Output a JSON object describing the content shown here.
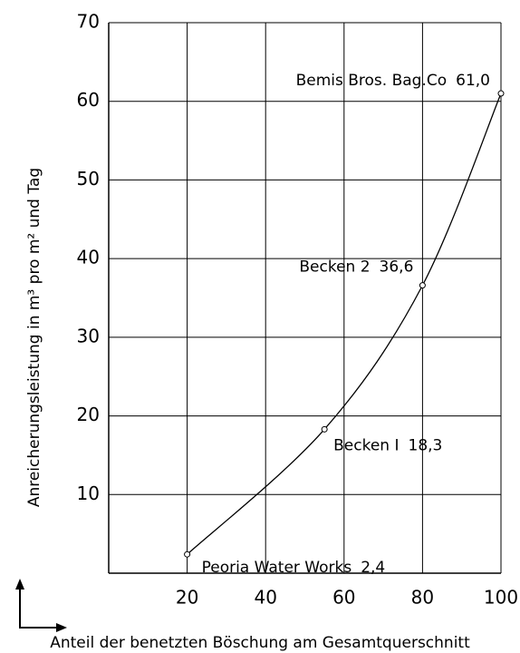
{
  "chart_data": {
    "type": "line",
    "xlabel": "Anteil der benetzten Böschung am Gesamtquerschnitt",
    "ylabel": "Anreicherungsleistung in m³ pro m² und Tag",
    "x": [
      20,
      55,
      80,
      100
    ],
    "values": [
      2.4,
      18.3,
      36.6,
      61.0
    ],
    "point_labels": [
      "Peoria Water Works",
      "Becken I",
      "Becken 2",
      "Bemis Bros. Bag.Co"
    ],
    "value_labels": [
      "2,4",
      "18,3",
      "36,6",
      "61,0"
    ],
    "color": "#000000",
    "xlim": [
      0,
      100
    ],
    "ylim": [
      0,
      70
    ],
    "xticks": [
      20,
      40,
      60,
      80,
      100
    ],
    "yticks": [
      10,
      20,
      30,
      40,
      50,
      60,
      70
    ],
    "grid": true
  }
}
